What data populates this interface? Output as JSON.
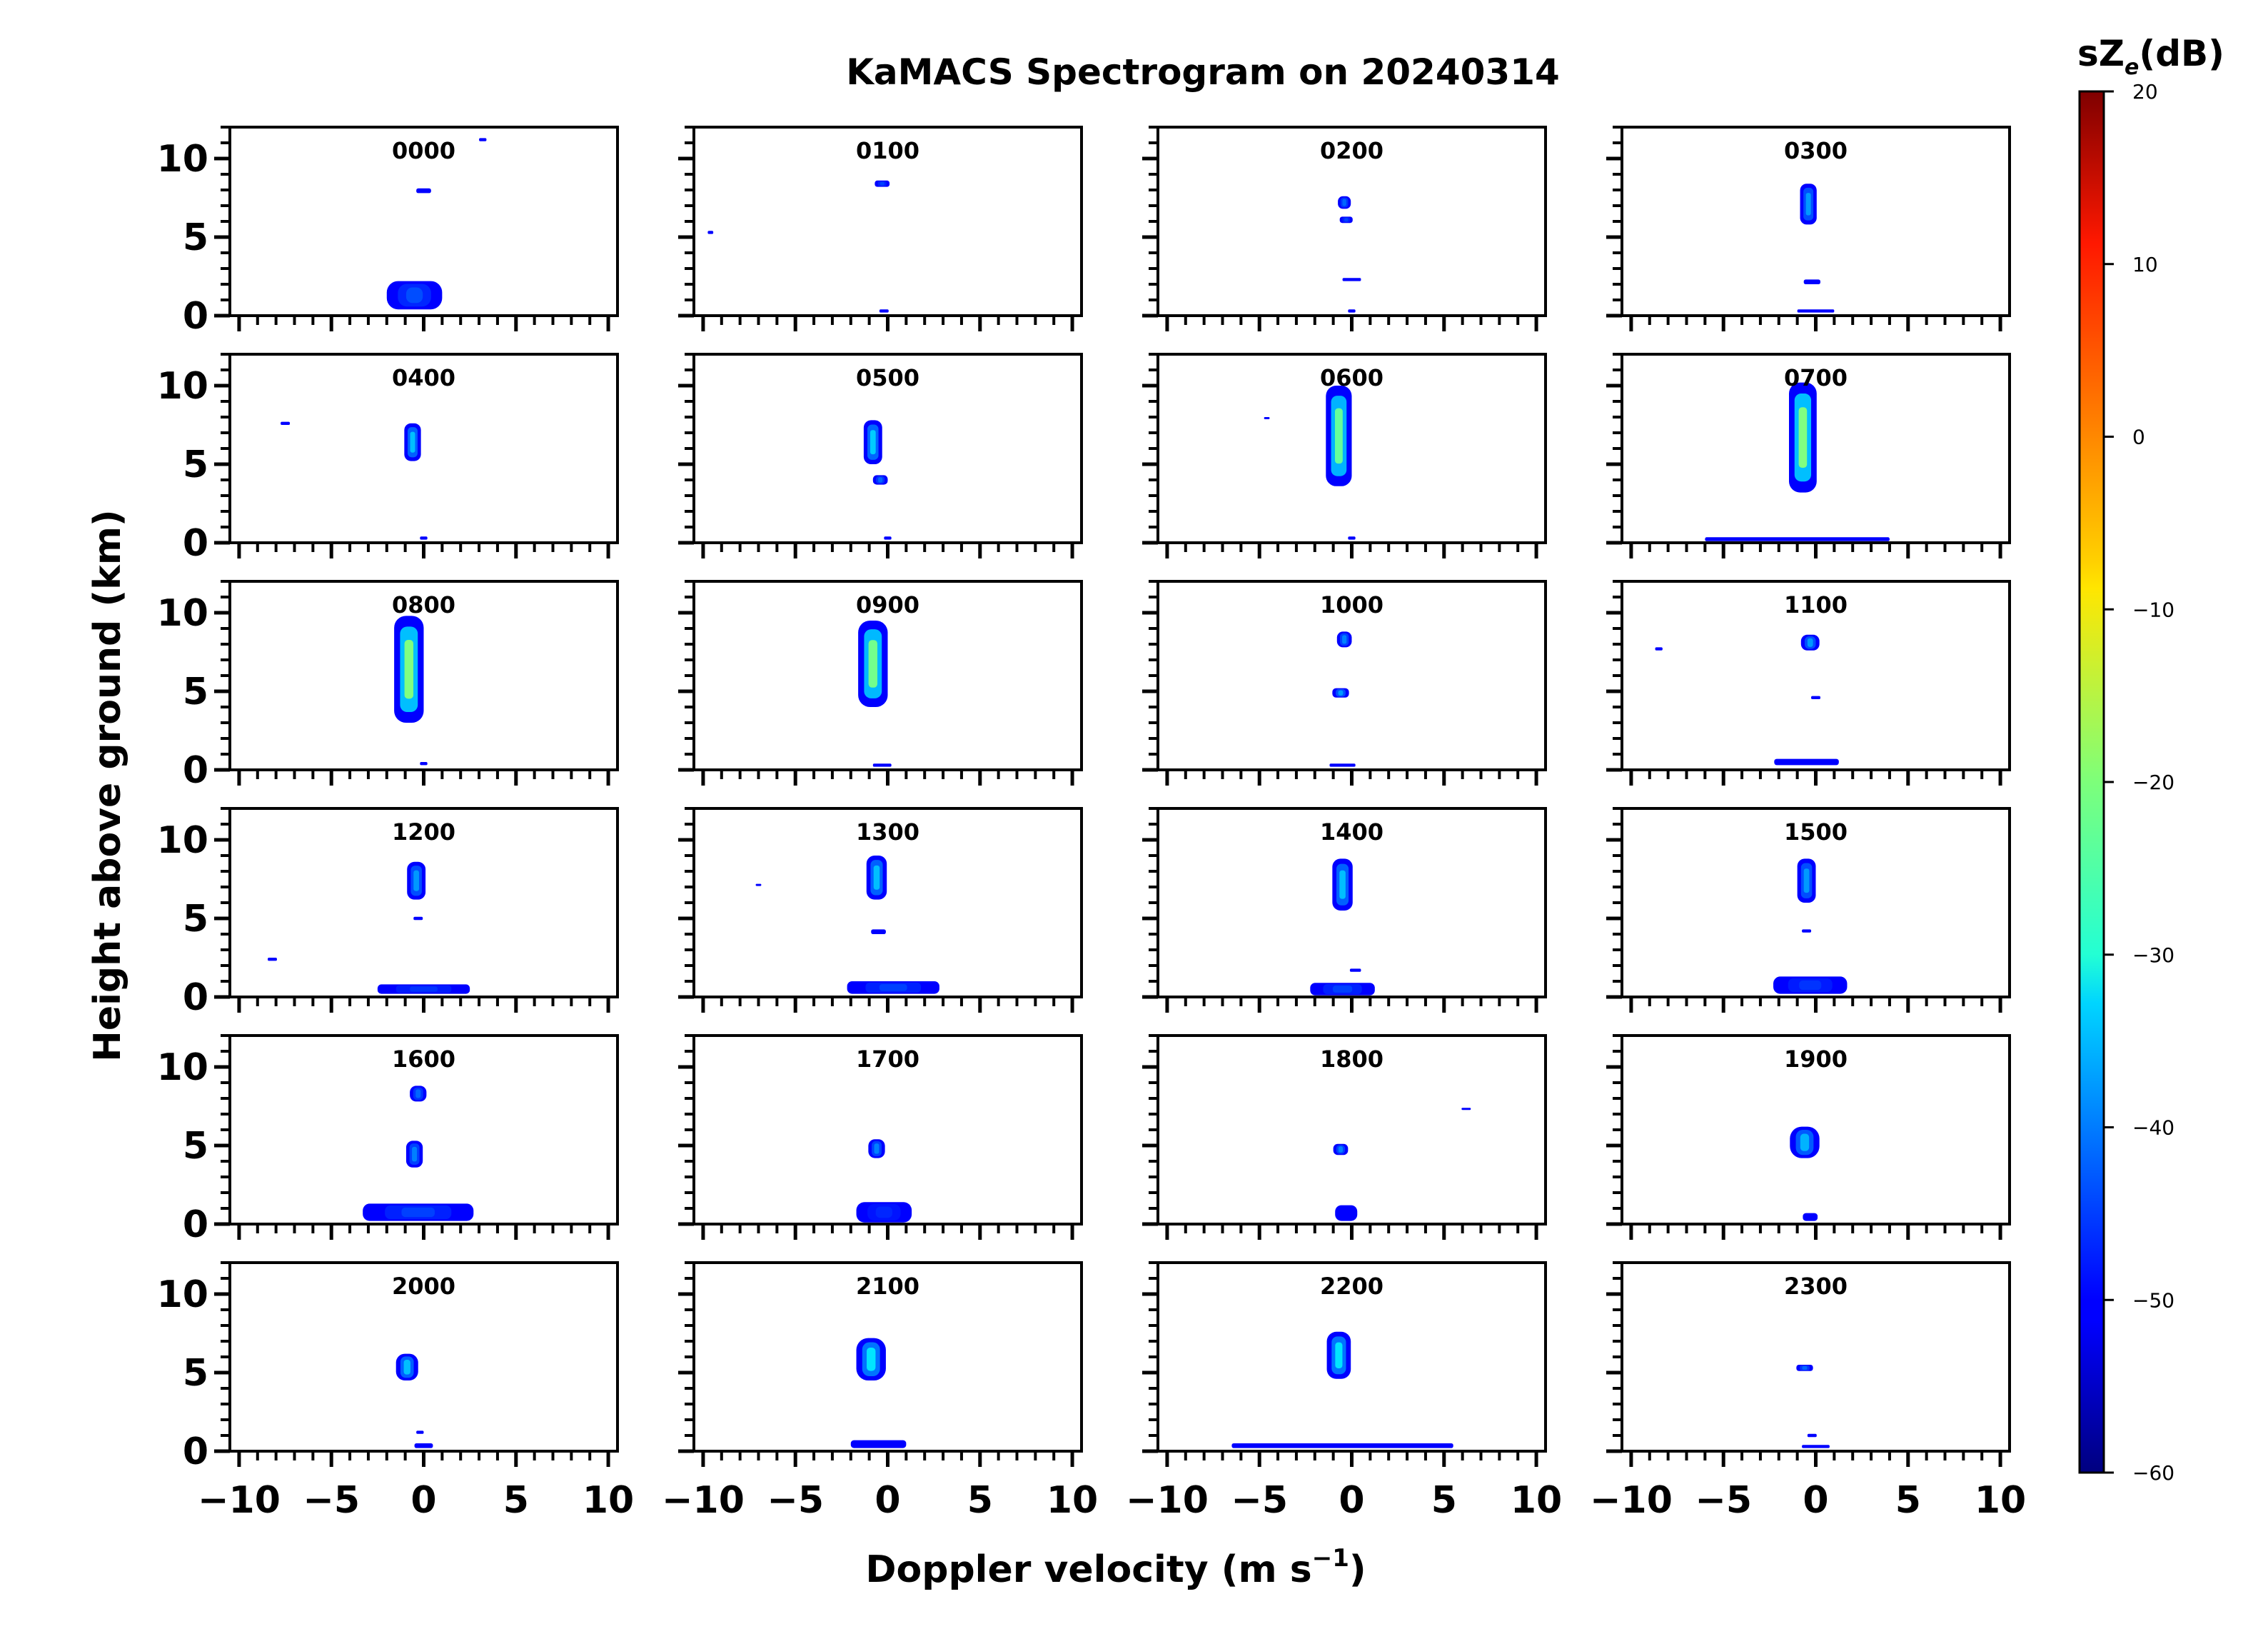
{
  "chart_data": {
    "type": "heatmap",
    "title": "KaMACS Spectrogram on 20240314",
    "xlabel": "Doppler velocity (m s",
    "xlabel_sup": "−1",
    "xlabel_close": ")",
    "ylabel": "Height above ground (km)",
    "xlim": [
      -10.5,
      10.5
    ],
    "ylim": [
      0,
      12
    ],
    "xticks": [
      -10,
      -5,
      0,
      5,
      10
    ],
    "xtick_labels": [
      "−10",
      "−5",
      "0",
      "5",
      "10"
    ],
    "yticks": [
      0,
      5,
      10
    ],
    "ytick_labels": [
      "0",
      "5",
      "10"
    ],
    "colorbar": {
      "label_main": "sZ",
      "label_sub": "e",
      "label_unit": "(dB)",
      "range": [
        -60,
        20
      ],
      "ticks": [
        20,
        10,
        0,
        -10,
        -20,
        -30,
        -40,
        -50,
        -60
      ],
      "tick_labels": [
        "20",
        "10",
        "0",
        "−10",
        "−20",
        "−30",
        "−40",
        "−50",
        "−60"
      ],
      "colormap": "jet"
    },
    "panels": [
      {
        "label": "0000",
        "blobs": [
          {
            "v": -0.5,
            "h0": 0.4,
            "h1": 2.2,
            "w": 3.0,
            "c": -44
          },
          {
            "v": 0.0,
            "h0": 7.8,
            "h1": 8.1,
            "w": 0.8,
            "c": -52
          },
          {
            "v": 3.2,
            "h0": 11.1,
            "h1": 11.3,
            "w": 0.4,
            "c": -55
          }
        ]
      },
      {
        "label": "0100",
        "blobs": [
          {
            "v": -0.3,
            "h0": 8.2,
            "h1": 8.6,
            "w": 0.8,
            "c": -45
          },
          {
            "v": -9.6,
            "h0": 5.2,
            "h1": 5.4,
            "w": 0.3,
            "c": -55
          },
          {
            "v": -0.2,
            "h0": 0.2,
            "h1": 0.4,
            "w": 0.5,
            "c": -52
          }
        ]
      },
      {
        "label": "0200",
        "blobs": [
          {
            "v": -0.4,
            "h0": 6.8,
            "h1": 7.6,
            "w": 0.7,
            "c": -42
          },
          {
            "v": -0.3,
            "h0": 5.9,
            "h1": 6.3,
            "w": 0.7,
            "c": -45
          },
          {
            "v": 0.0,
            "h0": 2.2,
            "h1": 2.4,
            "w": 1.0,
            "c": -52
          },
          {
            "v": 0.0,
            "h0": 0.2,
            "h1": 0.4,
            "w": 0.4,
            "c": -52
          }
        ]
      },
      {
        "label": "0300",
        "blobs": [
          {
            "v": -0.4,
            "h0": 5.8,
            "h1": 8.4,
            "w": 0.9,
            "c": -38
          },
          {
            "v": -0.2,
            "h0": 2.0,
            "h1": 2.3,
            "w": 0.9,
            "c": -50
          },
          {
            "v": 0.0,
            "h0": 0.2,
            "h1": 0.4,
            "w": 2.0,
            "c": -52
          }
        ]
      },
      {
        "label": "0400",
        "blobs": [
          {
            "v": -0.6,
            "h0": 5.2,
            "h1": 7.6,
            "w": 0.9,
            "c": -35
          },
          {
            "v": -7.5,
            "h0": 7.5,
            "h1": 7.7,
            "w": 0.5,
            "c": -52
          },
          {
            "v": 0.0,
            "h0": 0.2,
            "h1": 0.4,
            "w": 0.4,
            "c": -52
          }
        ]
      },
      {
        "label": "0500",
        "blobs": [
          {
            "v": -0.8,
            "h0": 5.0,
            "h1": 7.8,
            "w": 1.0,
            "c": -34
          },
          {
            "v": -0.4,
            "h0": 3.7,
            "h1": 4.3,
            "w": 0.8,
            "c": -42
          },
          {
            "v": 0.0,
            "h0": 0.2,
            "h1": 0.4,
            "w": 0.4,
            "c": -52
          }
        ]
      },
      {
        "label": "0600",
        "blobs": [
          {
            "v": -0.7,
            "h0": 3.6,
            "h1": 10.0,
            "w": 1.4,
            "c": -22
          },
          {
            "v": -4.6,
            "h0": 7.9,
            "h1": 8.0,
            "w": 0.3,
            "c": -55
          },
          {
            "v": 0.0,
            "h0": 0.2,
            "h1": 0.4,
            "w": 0.4,
            "c": -52
          }
        ]
      },
      {
        "label": "0700",
        "blobs": [
          {
            "v": -0.7,
            "h0": 3.2,
            "h1": 10.2,
            "w": 1.5,
            "c": -20
          },
          {
            "v": -1.0,
            "h0": 0.1,
            "h1": 0.35,
            "w": 10.0,
            "c": -48
          }
        ]
      },
      {
        "label": "0800",
        "blobs": [
          {
            "v": -0.8,
            "h0": 3.0,
            "h1": 9.8,
            "w": 1.6,
            "c": -20
          },
          {
            "v": 0.0,
            "h0": 0.3,
            "h1": 0.5,
            "w": 0.4,
            "c": -52
          }
        ]
      },
      {
        "label": "0900",
        "blobs": [
          {
            "v": -0.8,
            "h0": 4.0,
            "h1": 9.5,
            "w": 1.6,
            "c": -21
          },
          {
            "v": -0.3,
            "h0": 0.2,
            "h1": 0.4,
            "w": 1.0,
            "c": -50
          }
        ]
      },
      {
        "label": "1000",
        "blobs": [
          {
            "v": -0.4,
            "h0": 7.8,
            "h1": 8.8,
            "w": 0.8,
            "c": -40
          },
          {
            "v": -0.6,
            "h0": 4.6,
            "h1": 5.2,
            "w": 0.9,
            "c": -38
          },
          {
            "v": -0.5,
            "h0": 0.2,
            "h1": 0.4,
            "w": 1.4,
            "c": -52
          }
        ]
      },
      {
        "label": "1100",
        "blobs": [
          {
            "v": -0.3,
            "h0": 7.6,
            "h1": 8.6,
            "w": 1.0,
            "c": -38
          },
          {
            "v": 0.0,
            "h0": 4.5,
            "h1": 4.7,
            "w": 0.5,
            "c": -52
          },
          {
            "v": -8.5,
            "h0": 7.6,
            "h1": 7.8,
            "w": 0.4,
            "c": -55
          },
          {
            "v": -0.5,
            "h0": 0.3,
            "h1": 0.7,
            "w": 3.5,
            "c": -50
          }
        ]
      },
      {
        "label": "1200",
        "blobs": [
          {
            "v": -0.4,
            "h0": 6.2,
            "h1": 8.6,
            "w": 1.0,
            "c": -38
          },
          {
            "v": -0.3,
            "h0": 4.9,
            "h1": 5.1,
            "w": 0.5,
            "c": -52
          },
          {
            "v": -8.2,
            "h0": 2.3,
            "h1": 2.5,
            "w": 0.5,
            "c": -55
          },
          {
            "v": 0.0,
            "h0": 0.2,
            "h1": 0.8,
            "w": 5.0,
            "c": -46
          }
        ]
      },
      {
        "label": "1300",
        "blobs": [
          {
            "v": -0.6,
            "h0": 6.2,
            "h1": 9.0,
            "w": 1.1,
            "c": -35
          },
          {
            "v": -0.5,
            "h0": 4.0,
            "h1": 4.3,
            "w": 0.8,
            "c": -50
          },
          {
            "v": -7.0,
            "h0": 7.1,
            "h1": 7.2,
            "w": 0.3,
            "c": -55
          },
          {
            "v": 0.3,
            "h0": 0.2,
            "h1": 1.0,
            "w": 5.0,
            "c": -45
          }
        ]
      },
      {
        "label": "1400",
        "blobs": [
          {
            "v": -0.5,
            "h0": 5.5,
            "h1": 8.8,
            "w": 1.1,
            "c": -35
          },
          {
            "v": 0.2,
            "h0": 1.6,
            "h1": 1.8,
            "w": 0.6,
            "c": -52
          },
          {
            "v": -0.5,
            "h0": 0.1,
            "h1": 0.9,
            "w": 3.5,
            "c": -45
          }
        ]
      },
      {
        "label": "1500",
        "blobs": [
          {
            "v": -0.5,
            "h0": 6.0,
            "h1": 8.8,
            "w": 1.0,
            "c": -38
          },
          {
            "v": -0.5,
            "h0": 4.1,
            "h1": 4.3,
            "w": 0.5,
            "c": -52
          },
          {
            "v": -0.3,
            "h0": 0.2,
            "h1": 1.3,
            "w": 4.0,
            "c": -46
          }
        ]
      },
      {
        "label": "1600",
        "blobs": [
          {
            "v": -0.3,
            "h0": 7.8,
            "h1": 8.8,
            "w": 0.9,
            "c": -42
          },
          {
            "v": -0.5,
            "h0": 3.6,
            "h1": 5.3,
            "w": 0.9,
            "c": -40
          },
          {
            "v": -0.3,
            "h0": 0.2,
            "h1": 1.3,
            "w": 6.0,
            "c": -45
          }
        ]
      },
      {
        "label": "1700",
        "blobs": [
          {
            "v": -0.6,
            "h0": 4.2,
            "h1": 5.4,
            "w": 0.9,
            "c": -40
          },
          {
            "v": -0.2,
            "h0": 0.1,
            "h1": 1.4,
            "w": 3.0,
            "c": -47
          }
        ]
      },
      {
        "label": "1800",
        "blobs": [
          {
            "v": -0.6,
            "h0": 4.4,
            "h1": 5.1,
            "w": 0.8,
            "c": -40
          },
          {
            "v": 6.2,
            "h0": 7.3,
            "h1": 7.4,
            "w": 0.5,
            "c": -55
          },
          {
            "v": -0.3,
            "h0": 0.2,
            "h1": 1.2,
            "w": 1.2,
            "c": -50
          }
        ]
      },
      {
        "label": "1900",
        "blobs": [
          {
            "v": -0.6,
            "h0": 4.2,
            "h1": 6.2,
            "w": 1.6,
            "c": -36
          },
          {
            "v": -0.3,
            "h0": 0.2,
            "h1": 0.7,
            "w": 0.8,
            "c": -50
          }
        ]
      },
      {
        "label": "2000",
        "blobs": [
          {
            "v": -0.9,
            "h0": 4.5,
            "h1": 6.2,
            "w": 1.2,
            "c": -35
          },
          {
            "v": -0.2,
            "h0": 1.1,
            "h1": 1.3,
            "w": 0.4,
            "c": -52
          },
          {
            "v": 0.0,
            "h0": 0.2,
            "h1": 0.5,
            "w": 1.0,
            "c": -50
          }
        ]
      },
      {
        "label": "2100",
        "blobs": [
          {
            "v": -0.9,
            "h0": 4.5,
            "h1": 7.2,
            "w": 1.6,
            "c": -32
          },
          {
            "v": -0.5,
            "h0": 0.2,
            "h1": 0.7,
            "w": 3.0,
            "c": -50
          }
        ]
      },
      {
        "label": "2200",
        "blobs": [
          {
            "v": -0.7,
            "h0": 4.6,
            "h1": 7.6,
            "w": 1.3,
            "c": -32
          },
          {
            "v": -0.5,
            "h0": 0.2,
            "h1": 0.5,
            "w": 12.0,
            "c": -48
          }
        ]
      },
      {
        "label": "2300",
        "blobs": [
          {
            "v": -0.6,
            "h0": 5.1,
            "h1": 5.5,
            "w": 0.9,
            "c": -42
          },
          {
            "v": -0.2,
            "h0": 0.9,
            "h1": 1.1,
            "w": 0.5,
            "c": -52
          },
          {
            "v": 0.0,
            "h0": 0.2,
            "h1": 0.4,
            "w": 1.5,
            "c": -52
          }
        ]
      }
    ]
  }
}
